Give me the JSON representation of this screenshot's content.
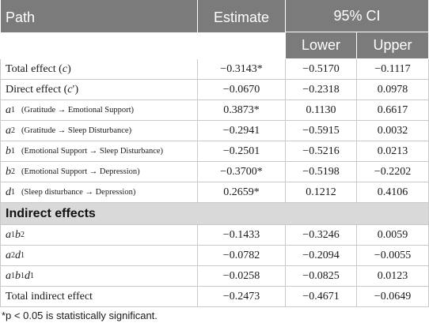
{
  "header": {
    "path": "Path",
    "estimate": "Estimate",
    "ci": "95% CI",
    "lower": "Lower",
    "upper": "Upper"
  },
  "rows": [
    {
      "estimate": "−0.3143*",
      "lower": "−0.5170",
      "upper": "−0.1117"
    },
    {
      "estimate": "−0.0670",
      "lower": "−0.2318",
      "upper": "0.0978"
    },
    {
      "note": "(Gratitude → Emotional Support)",
      "estimate": "0.3873*",
      "lower": "0.1130",
      "upper": "0.6617"
    },
    {
      "note": "(Gratitude → Sleep Disturbance)",
      "estimate": "−0.2941",
      "lower": "−0.5915",
      "upper": "0.0032"
    },
    {
      "note": "(Emotional Support → Sleep Disturbance)",
      "estimate": "−0.2501",
      "lower": "−0.5216",
      "upper": "0.0213"
    },
    {
      "note": "(Emotional Support → Depression)",
      "estimate": "−0.3700*",
      "lower": "−0.5198",
      "upper": "−0.2202"
    },
    {
      "note": "(Sleep disturbance → Depression)",
      "estimate": "0.2659*",
      "lower": "0.1212",
      "upper": "0.4106"
    }
  ],
  "section_title": "Indirect effects",
  "indirect_rows": [
    {
      "estimate": "−0.1433",
      "lower": "−0.3246",
      "upper": "0.0059"
    },
    {
      "estimate": "−0.0782",
      "lower": "−0.2094",
      "upper": "−0.0055"
    },
    {
      "estimate": "−0.0258",
      "lower": "−0.0825",
      "upper": "0.0123"
    },
    {
      "label": "Total indirect effect",
      "estimate": "−0.2473",
      "lower": "−0.4671",
      "upper": "−0.0649"
    }
  ],
  "footnote": "*p < 0.05 is statistically significant."
}
